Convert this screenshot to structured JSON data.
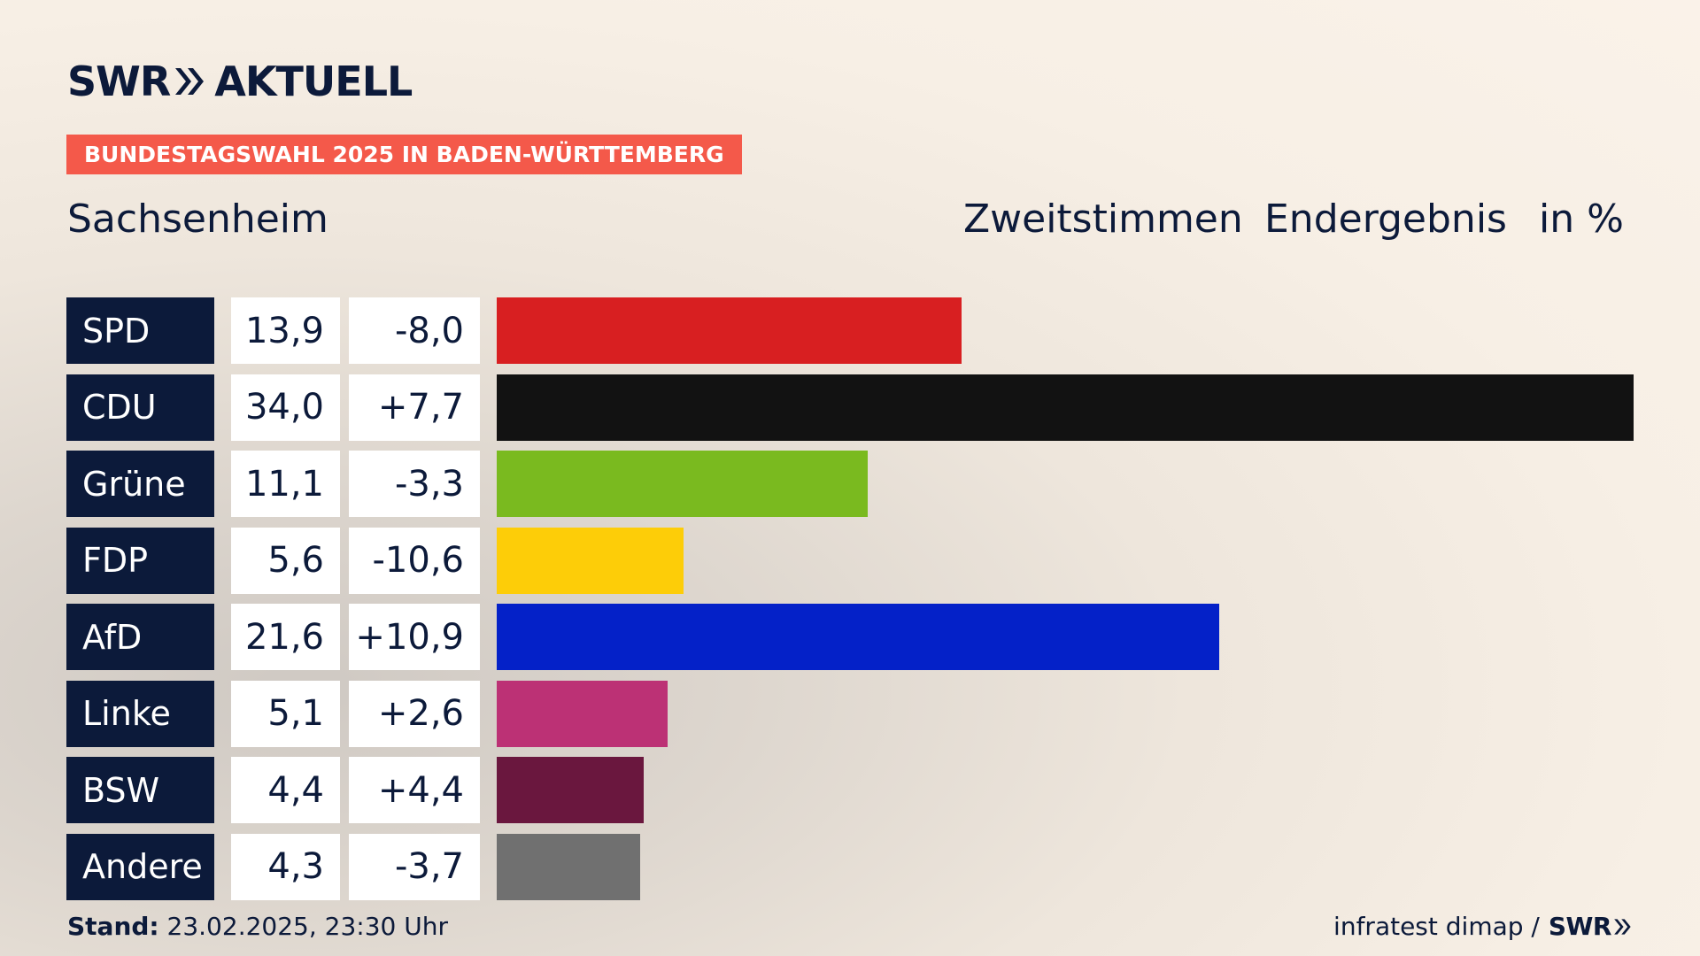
{
  "brand": {
    "logo_left": "SWR",
    "logo_right": "AKTUELL"
  },
  "banner": "BUNDESTAGSWAHL 2025 IN BADEN-WÜRTTEMBERG",
  "place": "Sachsenheim",
  "header": {
    "vote_type": "Zweitstimmen",
    "status": "Endergebnis",
    "unit": "in %"
  },
  "footer": {
    "stand_label": "Stand:",
    "stand_value": "23.02.2025, 23:30 Uhr",
    "source": "infratest dimap /",
    "source_logo": "SWR"
  },
  "colors": {
    "navy": "#0c1a3a",
    "banner": "#f4594a"
  },
  "chart_data": {
    "type": "bar",
    "orientation": "horizontal",
    "categories": [
      "SPD",
      "CDU",
      "Grüne",
      "FDP",
      "AfD",
      "Linke",
      "BSW",
      "Andere"
    ],
    "values": [
      13.9,
      34.0,
      11.1,
      5.6,
      21.6,
      5.1,
      4.4,
      4.3
    ],
    "value_labels": [
      "13,9",
      "34,0",
      "11,1",
      "5,6",
      "21,6",
      "5,1",
      "4,4",
      "4,3"
    ],
    "diff_labels": [
      "-8,0",
      "+7,7",
      "-3,3",
      "-10,6",
      "+10,9",
      "+2,6",
      "+4,4",
      "-3,7"
    ],
    "colors": [
      "#d81f21",
      "#121212",
      "#7aba1f",
      "#fdcd08",
      "#0421c8",
      "#bc3175",
      "#6a173e",
      "#707070"
    ],
    "grid": false,
    "legend": "none"
  }
}
